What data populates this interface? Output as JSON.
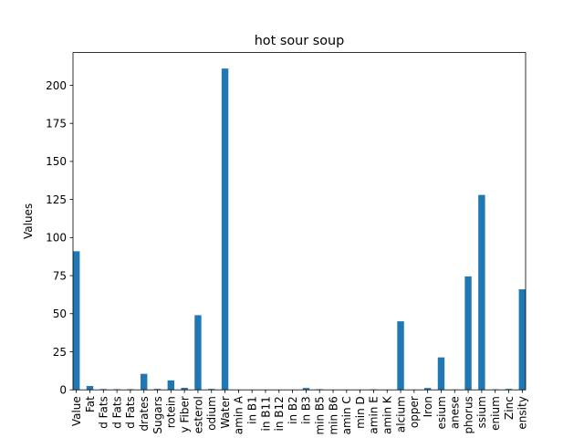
{
  "chart_data": {
    "type": "bar",
    "title": "hot sour soup",
    "xlabel": "",
    "ylabel": "Values",
    "ylim": [
      0,
      221.5
    ],
    "yticks": [
      0,
      25,
      50,
      75,
      100,
      125,
      150,
      175,
      200
    ],
    "grid": false,
    "legend": "none",
    "bar_color": "#1f77b4",
    "categories": [
      "Value",
      "Fat",
      "d Fats",
      "d Fats",
      "d Fats",
      "drates",
      "Sugars",
      "rotein",
      "y Fiber",
      "esterol",
      "odium",
      "Water",
      "amin A",
      "in B1",
      "in B11",
      "in B12",
      "in B2",
      "in B3",
      "min B5",
      "min B6",
      "amin C",
      "min D",
      "amin E",
      "amin K",
      "alcium",
      "opper",
      "Iron",
      "esium",
      "anese",
      "phorus",
      "ssium",
      "enium",
      "Zinc",
      "ensity"
    ],
    "values": [
      91,
      2.5,
      0.5,
      0.4,
      0.4,
      10.5,
      0.6,
      6.2,
      1.3,
      49,
      0.6,
      211,
      0,
      0,
      0,
      0,
      0.1,
      1.2,
      0.4,
      0.1,
      0,
      0,
      0.3,
      0,
      45,
      0.1,
      1.2,
      21.3,
      0.2,
      74.5,
      128,
      0.3,
      0.6,
      66
    ]
  }
}
